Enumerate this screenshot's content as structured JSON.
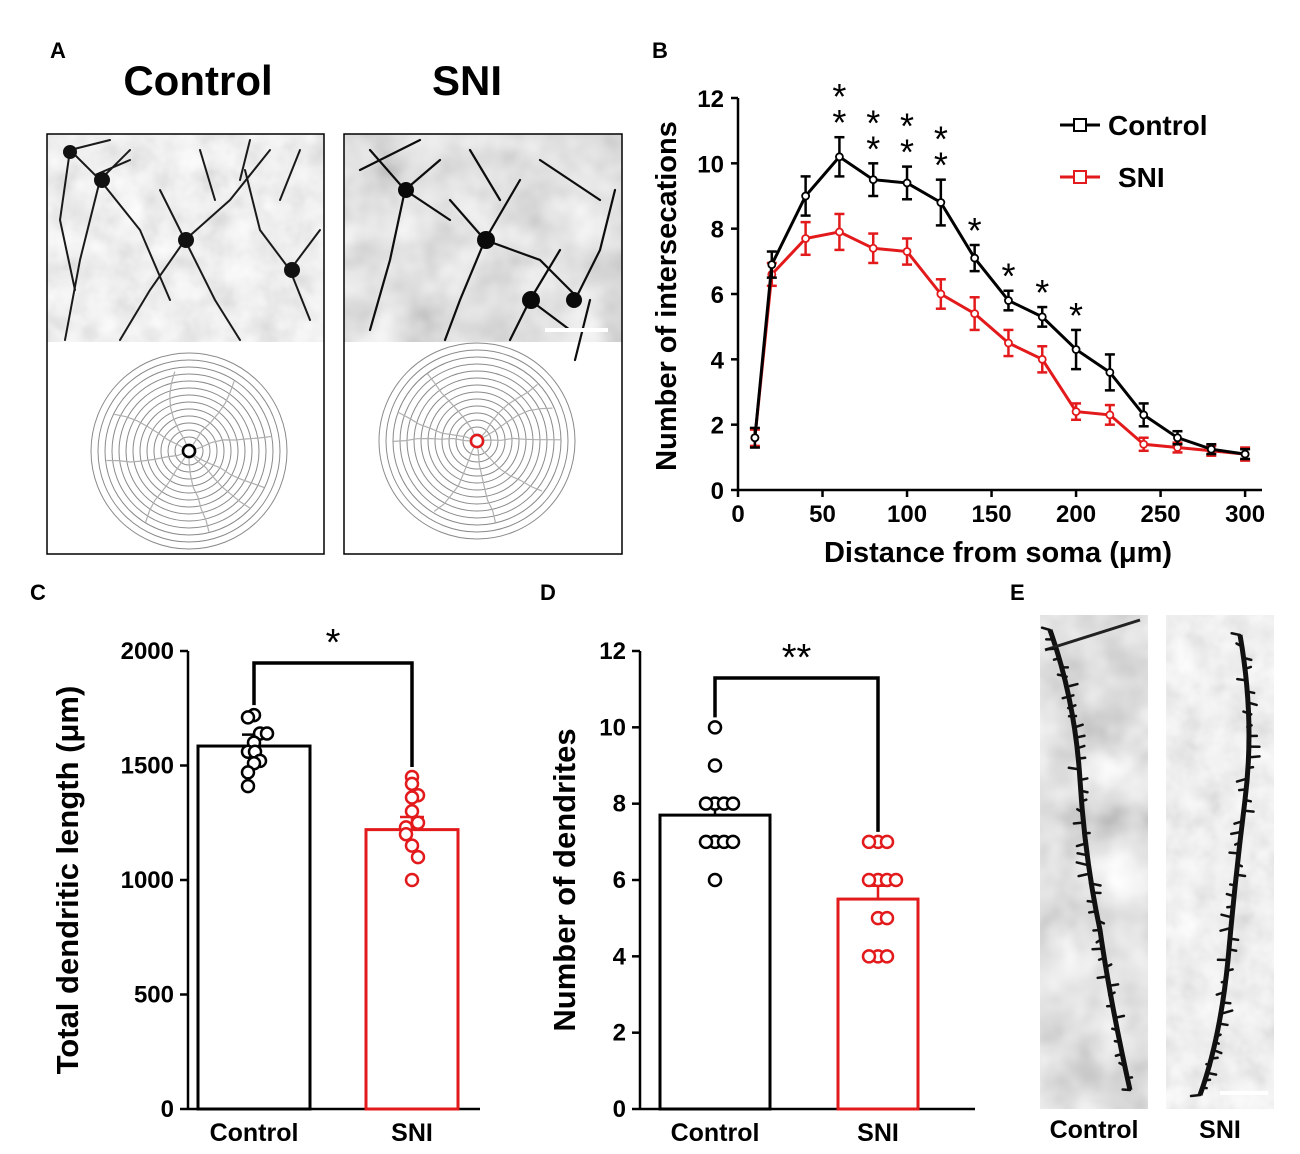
{
  "colors": {
    "control": "#000000",
    "sni": "#e31a1c"
  },
  "panels": {
    "a": "A",
    "b": "B",
    "c": "C",
    "d": "D",
    "e": "E"
  },
  "panel_a": {
    "control_title": "Control",
    "sni_title": "SNI",
    "micrograph_description": "Golgi-stained pyramidal neurons with dendritic tracings on concentric Sholl rings"
  },
  "panel_e": {
    "control_label": "Control",
    "sni_label": "SNI",
    "micrograph_description": "Golgi-stained dendritic segments showing spines"
  },
  "chart_data": [
    {
      "id": "B",
      "type": "line",
      "xlabel": "Distance from soma (μm)",
      "ylabel": "Number of intersecations",
      "xlim": [
        0,
        310
      ],
      "ylim": [
        0,
        12
      ],
      "xticks": [
        0,
        50,
        100,
        150,
        200,
        250,
        300
      ],
      "yticks": [
        0,
        2,
        4,
        6,
        8,
        10,
        12
      ],
      "legend_position": "top-right",
      "x": [
        10,
        20,
        40,
        60,
        80,
        100,
        120,
        140,
        160,
        180,
        200,
        220,
        240,
        260,
        280,
        300
      ],
      "series": [
        {
          "name": "Control",
          "color": "#000000",
          "values": [
            1.6,
            6.9,
            9.0,
            10.2,
            9.5,
            9.4,
            8.8,
            7.1,
            5.8,
            5.3,
            4.3,
            3.6,
            2.3,
            1.6,
            1.25,
            1.1
          ],
          "errors": [
            0.3,
            0.4,
            0.6,
            0.6,
            0.5,
            0.5,
            0.7,
            0.4,
            0.3,
            0.3,
            0.6,
            0.55,
            0.35,
            0.2,
            0.15,
            0.15
          ]
        },
        {
          "name": "SNI",
          "color": "#e31a1c",
          "values": [
            1.6,
            6.6,
            7.7,
            7.9,
            7.4,
            7.3,
            6.0,
            5.4,
            4.5,
            4.0,
            2.4,
            2.3,
            1.4,
            1.3,
            1.2,
            1.1
          ],
          "errors": [
            0.25,
            0.35,
            0.5,
            0.55,
            0.45,
            0.4,
            0.45,
            0.5,
            0.4,
            0.4,
            0.25,
            0.3,
            0.2,
            0.15,
            0.15,
            0.2
          ]
        }
      ],
      "significance": [
        {
          "x": 60,
          "label": "**"
        },
        {
          "x": 80,
          "label": "**"
        },
        {
          "x": 100,
          "label": "**"
        },
        {
          "x": 120,
          "label": "**"
        },
        {
          "x": 140,
          "label": "*"
        },
        {
          "x": 160,
          "label": "*"
        },
        {
          "x": 180,
          "label": "*"
        },
        {
          "x": 200,
          "label": "*"
        }
      ]
    },
    {
      "id": "C",
      "type": "bar",
      "ylabel": "Total dendritic length (μm)",
      "ylim": [
        0,
        2000
      ],
      "yticks": [
        0,
        500,
        1000,
        1500,
        2000
      ],
      "categories": [
        "Control",
        "SNI"
      ],
      "values": [
        1585,
        1220
      ],
      "errors": [
        50,
        55
      ],
      "colors": [
        "#000000",
        "#e31a1c"
      ],
      "points": [
        [
          1720,
          1710,
          1640,
          1640,
          1600,
          1560,
          1560,
          1520,
          1510,
          1470,
          1410
        ],
        [
          1450,
          1420,
          1370,
          1360,
          1300,
          1250,
          1230,
          1200,
          1150,
          1100,
          1000
        ]
      ],
      "significance": "*"
    },
    {
      "id": "D",
      "type": "bar",
      "ylabel": "Number of dendrites",
      "ylim": [
        0,
        12
      ],
      "yticks": [
        0,
        2,
        4,
        6,
        8,
        10,
        12
      ],
      "categories": [
        "Control",
        "SNI"
      ],
      "values": [
        7.7,
        5.5
      ],
      "errors": [
        0.35,
        0.35
      ],
      "colors": [
        "#000000",
        "#e31a1c"
      ],
      "points": [
        [
          10,
          9,
          8,
          8,
          8,
          8,
          7,
          7,
          7,
          7,
          6
        ],
        [
          7,
          7,
          7,
          6,
          6,
          6,
          6,
          5,
          5,
          4,
          4,
          4
        ]
      ],
      "significance": "**"
    }
  ]
}
